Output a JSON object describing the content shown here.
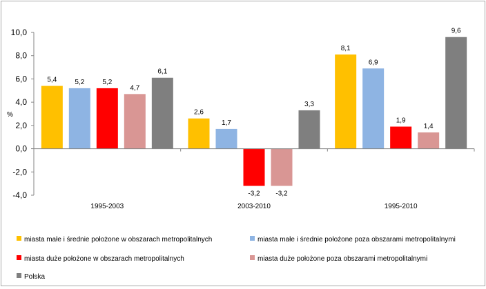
{
  "chart_data": {
    "type": "bar",
    "ylabel": "%",
    "ylim": [
      -4.0,
      10.0
    ],
    "yticks": [
      "10,0",
      "8,0",
      "6,0",
      "4,0",
      "2,0",
      "0,0",
      "-2,0",
      "-4,0"
    ],
    "ytick_values": [
      10,
      8,
      6,
      4,
      2,
      0,
      -2,
      -4
    ],
    "grid": false,
    "legend_position": "bottom",
    "categories": [
      "1995-2003",
      "2003-2010",
      "1995-2010"
    ],
    "series": [
      {
        "name": "miasta małe i średnie położone w obszarach metropolitalnych",
        "color": "#ffc000",
        "values": [
          5.4,
          2.6,
          8.1
        ],
        "labels": [
          "5,4",
          "2,6",
          "8,1"
        ]
      },
      {
        "name": "miasta małe i średnie położone poza obszarami metropolitalnymi",
        "color": "#8eb4e3",
        "values": [
          5.2,
          1.7,
          6.9
        ],
        "labels": [
          "5,2",
          "1,7",
          "6,9"
        ]
      },
      {
        "name": "miasta duże położone w obszarach metropolitalnych",
        "color": "#ff0000",
        "values": [
          5.2,
          -3.2,
          1.9
        ],
        "labels": [
          "5,2",
          "-3,2",
          "1,9"
        ]
      },
      {
        "name": "miasta duże położone poza obszarami metropolitalnymi",
        "color": "#d99694",
        "values": [
          4.7,
          -3.2,
          1.4
        ],
        "labels": [
          "4,7",
          "-3,2",
          "1,4"
        ]
      },
      {
        "name": "Polska",
        "color": "#7f7f7f",
        "values": [
          6.1,
          3.3,
          9.6
        ],
        "labels": [
          "6,1",
          "3,3",
          "9,6"
        ]
      }
    ]
  }
}
